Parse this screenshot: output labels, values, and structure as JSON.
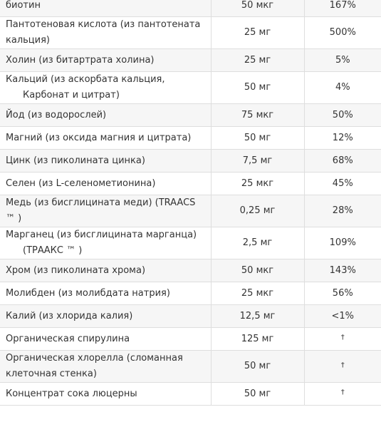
{
  "table": {
    "rows": [
      {
        "name": "биотин",
        "amount": "50 мкг",
        "dv": "167%"
      },
      {
        "name": "Пантотеновая кислота (из пантотената кальция)",
        "amount": "25 мг",
        "dv": "500%"
      },
      {
        "name": "Холин (из битартрата холина)",
        "amount": "25 мг",
        "dv": "5%"
      },
      {
        "name": "Кальций (из аскорбата кальция,",
        "name_cont": "Карбонат и цитрат)",
        "amount": "50 мг",
        "dv": "4%"
      },
      {
        "name": "Йод (из водорослей)",
        "amount": "75 мкг",
        "dv": "50%"
      },
      {
        "name": "Магний (из оксида магния и цитрата)",
        "amount": "50 мг",
        "dv": "12%"
      },
      {
        "name": "Цинк (из пиколината цинка)",
        "amount": "7,5 мг",
        "dv": "68%"
      },
      {
        "name": "Селен (из L-селенометионина)",
        "amount": "25 мкг",
        "dv": "45%"
      },
      {
        "name": "Медь (из бисглицината меди) (TRAACS ™ )",
        "amount": "0,25 мг",
        "dv": "28%"
      },
      {
        "name": "Марганец (из бисглицината марганца)",
        "name_cont": "(ТРААКС ™ )",
        "amount": "2,5 мг",
        "dv": "109%"
      },
      {
        "name": "Хром (из пиколината хрома)",
        "amount": "50 мкг",
        "dv": "143%"
      },
      {
        "name": "Молибден (из молибдата натрия)",
        "amount": "25 мкг",
        "dv": "56%"
      },
      {
        "name": "Калий (из хлорида калия)",
        "amount": "12,5 мг",
        "dv": "<1%"
      },
      {
        "name": "Органическая спирулина",
        "amount": "125 мг",
        "dv": "†"
      },
      {
        "name": "Органическая хлорелла (сломанная клеточная стенка)",
        "amount": "50 мг",
        "dv": "†"
      },
      {
        "name": "Концентрат сока люцерны",
        "amount": "50 мг",
        "dv": "†"
      }
    ]
  }
}
